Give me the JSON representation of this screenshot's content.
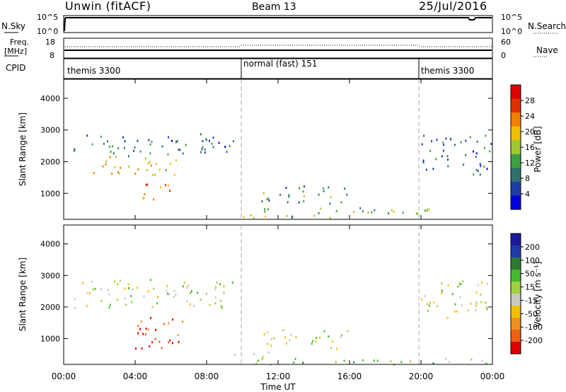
{
  "header": {
    "station": "Unwin (fitACF)",
    "beam": "Beam 13",
    "date": "25/Jul/2016"
  },
  "nsky_panel": {
    "label": "N.Sky",
    "ticks_left": [
      "10^5",
      "10^0"
    ],
    "ticks_right": [
      "10^5",
      "10^0"
    ],
    "right_label": "N.Search"
  },
  "freq_panel": {
    "label_line1": "Freq.",
    "label_line2": "[MHz]",
    "ticks_left": [
      "18",
      "8"
    ],
    "ticks_right": [
      "60",
      "0"
    ],
    "right_label": "Nave"
  },
  "cpid_panel": {
    "label": "CPID",
    "segments": [
      {
        "start": 0,
        "end": 10,
        "text": "themis 3300"
      },
      {
        "start": 10,
        "end": 20,
        "text": "normal (fast) 151"
      },
      {
        "start": 20,
        "end": 24,
        "text": "themis 3300"
      }
    ]
  },
  "x_axis": {
    "title": "Time UT",
    "ticks": [
      "00:00",
      "04:00",
      "08:00",
      "12:00",
      "16:00",
      "20:00",
      "00:00"
    ],
    "range_hours": [
      0,
      24
    ]
  },
  "power_panel": {
    "ylabel": "Slant Range [km]",
    "yticks": [
      "4000",
      "3000",
      "2000",
      "1000"
    ],
    "cbar_title": "Power [dB]",
    "cbar_ticks": [
      "28",
      "24",
      "20",
      "16",
      "12",
      "8",
      "4"
    ],
    "colors": [
      "#0000e0",
      "#1e3ca8",
      "#2f7070",
      "#3aa040",
      "#a0c830",
      "#f0c000",
      "#f08000",
      "#e03000",
      "#e00000"
    ]
  },
  "velocity_panel": {
    "ylabel": "Slant Range [km]",
    "yticks": [
      "4000",
      "3000",
      "2000",
      "1000"
    ],
    "cbar_title": "Velocity [m s⁻¹]",
    "cbar_ticks": [
      "200",
      "100",
      "50",
      "15",
      "-15",
      "-50",
      "-100",
      "-200"
    ],
    "colors": [
      "#1a1aa0",
      "#1e3ca8",
      "#2f7a30",
      "#46b830",
      "#9ed040",
      "#c8c8c0",
      "#f0c000",
      "#f09020",
      "#f06010",
      "#e00000"
    ]
  },
  "chart_data": {
    "type": "heatmap",
    "title": "Unwin (fitACF) Beam 13 25/Jul/2016",
    "xlabel": "Time UT",
    "ylabel": "Slant Range [km]",
    "xlim": [
      0,
      24
    ],
    "ylim": [
      180,
      4600
    ],
    "series": [
      {
        "name": "Power [dB]",
        "clusters": [
          {
            "t_start": 0.5,
            "t_end": 9.5,
            "r_low": 2200,
            "r_high": 2900,
            "value": 8
          },
          {
            "t_start": 1.0,
            "t_end": 6.3,
            "r_low": 1600,
            "r_high": 2200,
            "value": 18
          },
          {
            "t_start": 4.0,
            "t_end": 6.0,
            "r_low": 800,
            "r_high": 1400,
            "value": 22
          },
          {
            "t_start": 10.0,
            "t_end": 20.5,
            "r_low": 250,
            "r_high": 600,
            "value": 12
          },
          {
            "t_start": 11.0,
            "t_end": 16.0,
            "r_low": 700,
            "r_high": 1300,
            "value": 10
          },
          {
            "t_start": 20.0,
            "t_end": 23.9,
            "r_low": 1600,
            "r_high": 2900,
            "value": 8
          }
        ]
      },
      {
        "name": "Velocity [m s-1]",
        "clusters": [
          {
            "t_start": 0.5,
            "t_end": 9.5,
            "r_low": 2000,
            "r_high": 2900,
            "value": 0
          },
          {
            "t_start": 4.0,
            "t_end": 6.8,
            "r_low": 700,
            "r_high": 1800,
            "value": -200
          },
          {
            "t_start": 9.5,
            "t_end": 12.0,
            "r_low": 400,
            "r_high": 600,
            "value": -80
          },
          {
            "t_start": 11.0,
            "t_end": 16.0,
            "r_low": 700,
            "r_high": 1300,
            "value": 0
          },
          {
            "t_start": 10.0,
            "t_end": 24.0,
            "r_low": 200,
            "r_high": 400,
            "value": 40
          },
          {
            "t_start": 20.0,
            "t_end": 23.9,
            "r_low": 1600,
            "r_high": 2900,
            "value": -10
          }
        ]
      }
    ],
    "grid": false,
    "legend": "right colorbars"
  }
}
